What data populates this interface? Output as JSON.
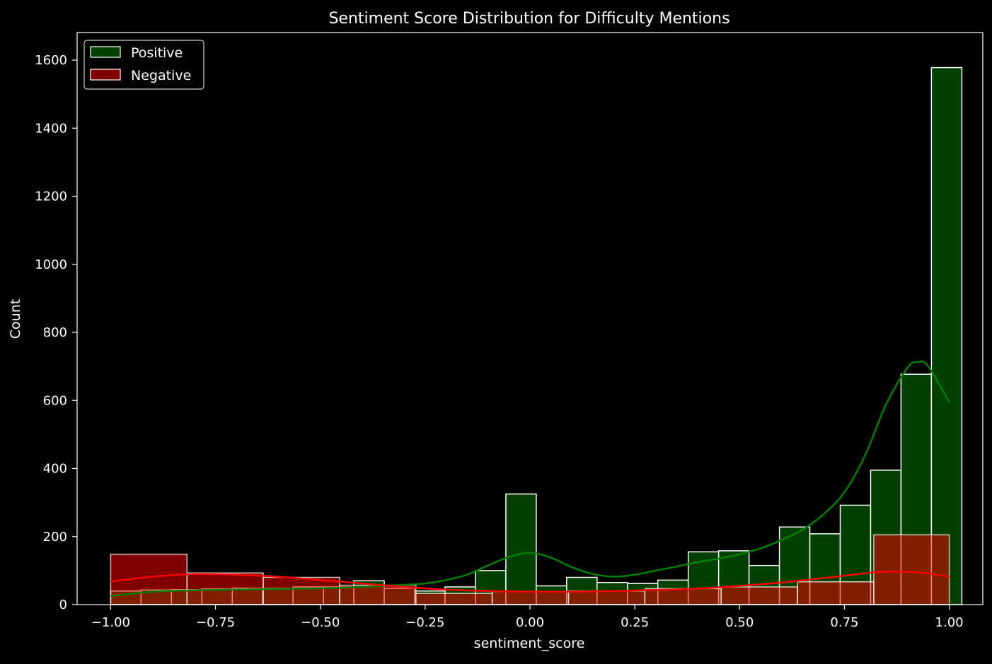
{
  "chart_data": {
    "type": "bar",
    "title": "Sentiment Score Distribution for Difficulty Mentions",
    "xlabel": "sentiment_score",
    "ylabel": "Count",
    "xlim": [
      -1.08,
      1.08
    ],
    "ylim": [
      0,
      1600
    ],
    "xticks": [
      -1.0,
      -0.75,
      -0.5,
      -0.25,
      0.0,
      0.25,
      0.5,
      0.75,
      1.0
    ],
    "xtick_labels": [
      "−1.00",
      "−0.75",
      "−0.50",
      "−0.25",
      "0.00",
      "0.25",
      "0.50",
      "0.75",
      "1.00"
    ],
    "yticks": [
      0,
      200,
      400,
      600,
      800,
      1000,
      1200,
      1400,
      1600
    ],
    "ytick_labels": [
      "0",
      "200",
      "400",
      "600",
      "800",
      "1000",
      "1200",
      "1400",
      "1600"
    ],
    "grid": false,
    "legend_position": "top-left",
    "series": [
      {
        "name": "Positive",
        "color": "#004000",
        "kde_color": "#008000",
        "bins": [
          {
            "x0": -1.0,
            "x1": -0.9275,
            "count": 40
          },
          {
            "x0": -0.9275,
            "x1": -0.855,
            "count": 43
          },
          {
            "x0": -0.855,
            "x1": -0.7825,
            "count": 44
          },
          {
            "x0": -0.7825,
            "x1": -0.71,
            "count": 46
          },
          {
            "x0": -0.71,
            "x1": -0.6375,
            "count": 48
          },
          {
            "x0": -0.6375,
            "x1": -0.565,
            "count": 48
          },
          {
            "x0": -0.565,
            "x1": -0.4925,
            "count": 52
          },
          {
            "x0": -0.4925,
            "x1": -0.42,
            "count": 52
          },
          {
            "x0": -0.42,
            "x1": -0.3475,
            "count": 70
          },
          {
            "x0": -0.3475,
            "x1": -0.275,
            "count": 48
          },
          {
            "x0": -0.275,
            "x1": -0.2025,
            "count": 40
          },
          {
            "x0": -0.2025,
            "x1": -0.13,
            "count": 52
          },
          {
            "x0": -0.13,
            "x1": -0.0575,
            "count": 100
          },
          {
            "x0": -0.0575,
            "x1": 0.015,
            "count": 325
          },
          {
            "x0": 0.015,
            "x1": 0.0875,
            "count": 55
          },
          {
            "x0": 0.0875,
            "x1": 0.16,
            "count": 80
          },
          {
            "x0": 0.16,
            "x1": 0.2325,
            "count": 65
          },
          {
            "x0": 0.2325,
            "x1": 0.305,
            "count": 62
          },
          {
            "x0": 0.305,
            "x1": 0.3775,
            "count": 72
          },
          {
            "x0": 0.3775,
            "x1": 0.45,
            "count": 155
          },
          {
            "x0": 0.45,
            "x1": 0.5225,
            "count": 158
          },
          {
            "x0": 0.5225,
            "x1": 0.595,
            "count": 115
          },
          {
            "x0": 0.595,
            "x1": 0.6675,
            "count": 228
          },
          {
            "x0": 0.6675,
            "x1": 0.74,
            "count": 208
          },
          {
            "x0": 0.74,
            "x1": 0.8125,
            "count": 292
          },
          {
            "x0": 0.8125,
            "x1": 0.885,
            "count": 395
          },
          {
            "x0": 0.885,
            "x1": 0.9575,
            "count": 677
          },
          {
            "x0": 0.9575,
            "x1": 1.03,
            "count": 1578
          }
        ],
        "kde": {
          "x": [
            -1.0,
            -0.9,
            -0.8,
            -0.7,
            -0.6,
            -0.5,
            -0.4,
            -0.3,
            -0.25,
            -0.2,
            -0.15,
            -0.1,
            -0.05,
            0.0,
            0.05,
            0.1,
            0.15,
            0.2,
            0.25,
            0.3,
            0.35,
            0.4,
            0.45,
            0.5,
            0.55,
            0.6,
            0.65,
            0.7,
            0.75,
            0.8,
            0.85,
            0.9,
            0.925,
            0.95,
            1.0
          ],
          "y": [
            25,
            38,
            42,
            44,
            46,
            48,
            52,
            58,
            62,
            72,
            88,
            115,
            140,
            152,
            138,
            110,
            90,
            82,
            88,
            100,
            112,
            125,
            135,
            148,
            165,
            190,
            220,
            265,
            330,
            440,
            590,
            695,
            713,
            700,
            595
          ]
        }
      },
      {
        "name": "Negative",
        "color": "#800000",
        "kde_color": "#ff0000",
        "bins": [
          {
            "x0": -1.0,
            "x1": -0.818,
            "count": 148
          },
          {
            "x0": -0.818,
            "x1": -0.636,
            "count": 93
          },
          {
            "x0": -0.636,
            "x1": -0.454,
            "count": 80
          },
          {
            "x0": -0.454,
            "x1": -0.272,
            "count": 57
          },
          {
            "x0": -0.272,
            "x1": -0.09,
            "count": 33
          },
          {
            "x0": -0.09,
            "x1": 0.092,
            "count": 38
          },
          {
            "x0": 0.092,
            "x1": 0.274,
            "count": 40
          },
          {
            "x0": 0.274,
            "x1": 0.456,
            "count": 47
          },
          {
            "x0": 0.456,
            "x1": 0.638,
            "count": 52
          },
          {
            "x0": 0.638,
            "x1": 0.82,
            "count": 67
          },
          {
            "x0": 0.82,
            "x1": 1.0,
            "count": 205
          }
        ],
        "kde": {
          "x": [
            -1.0,
            -0.9,
            -0.8,
            -0.7,
            -0.6,
            -0.5,
            -0.4,
            -0.3,
            -0.2,
            -0.1,
            0.0,
            0.1,
            0.2,
            0.3,
            0.4,
            0.5,
            0.6,
            0.7,
            0.8,
            0.85,
            0.9,
            0.95,
            1.0
          ],
          "y": [
            68,
            82,
            90,
            88,
            82,
            72,
            62,
            52,
            44,
            40,
            38,
            38,
            40,
            43,
            47,
            55,
            65,
            78,
            92,
            97,
            96,
            92,
            82
          ]
        }
      }
    ],
    "legend": [
      {
        "label": "Positive",
        "color": "#004000"
      },
      {
        "label": "Negative",
        "color": "#800000"
      }
    ]
  }
}
